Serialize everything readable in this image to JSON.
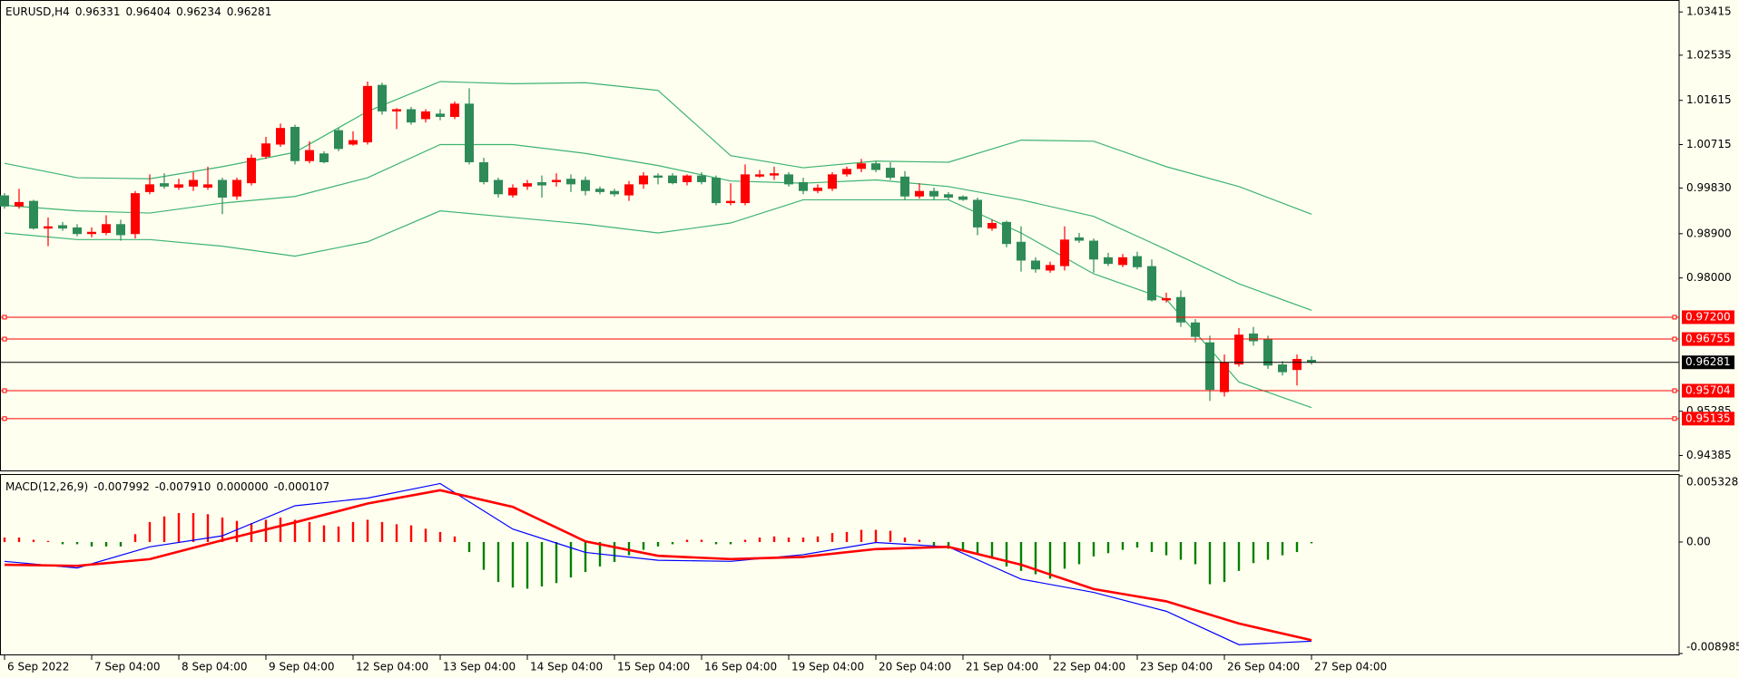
{
  "chart_data": [
    {
      "type": "candlestick",
      "symbol": "EURUSD,H4",
      "up_color": "#ff0000",
      "down_color": "#2e8b57",
      "ylim": [
        0.9408,
        1.0364
      ],
      "yticks": [
        1.03415,
        1.02535,
        1.01615,
        1.00715,
        {
          "value": 0.9983,
          "label": "0.99830"
        },
        {
          "value": 0.989,
          "label": "0.98900"
        },
        {
          "value": 0.98,
          "label": "0.98000"
        },
        0.95285,
        0.94385
      ],
      "grid": false,
      "candles": [
        [
          0.9968,
          0.99725,
          0.9941,
          0.99455
        ],
        [
          0.99455,
          0.99815,
          0.9941,
          0.99545
        ],
        [
          0.99568,
          0.9959,
          0.98983,
          0.99005
        ],
        [
          0.99005,
          0.9923,
          0.98645,
          0.9905
        ],
        [
          0.99073,
          0.9914,
          0.9896,
          0.99005
        ],
        [
          0.99028,
          0.99095,
          0.98848,
          0.98893
        ],
        [
          0.98893,
          0.99028,
          0.98825,
          0.98938
        ],
        [
          0.98915,
          0.99275,
          0.9887,
          0.99095
        ],
        [
          0.99095,
          0.99185,
          0.98758,
          0.9887
        ],
        [
          0.98893,
          0.9977,
          0.98803,
          0.99725
        ],
        [
          0.99748,
          1.00108,
          0.99703,
          0.99905
        ],
        [
          0.99928,
          1.0013,
          0.99815,
          0.9986
        ],
        [
          0.99838,
          1.00018,
          0.99793,
          0.99905
        ],
        [
          0.9986,
          1.00153,
          0.9977,
          0.99995
        ],
        [
          0.99838,
          1.00265,
          0.99793,
          0.99905
        ],
        [
          0.99995,
          1.0004,
          0.99298,
          0.99635
        ],
        [
          0.99658,
          1.0004,
          0.9959,
          0.99995
        ],
        [
          0.99928,
          1.00513,
          0.99883,
          1.00445
        ],
        [
          1.00468,
          1.00873,
          1.00423,
          1.00738
        ],
        [
          1.00715,
          1.01143,
          1.0067,
          1.01053
        ],
        [
          1.01075,
          1.0112,
          1.0031,
          1.00378
        ],
        [
          1.00378,
          1.00783,
          1.00333,
          1.00603
        ],
        [
          1.00535,
          1.0058,
          1.00333,
          1.00355
        ],
        [
          1.01008,
          1.01053,
          1.0058,
          1.00625
        ],
        [
          1.00715,
          1.00985,
          1.00693,
          1.00805
        ],
        [
          1.0076,
          1.01998,
          1.00715,
          1.01908
        ],
        [
          1.0193,
          1.01975,
          1.01323,
          1.0139
        ],
        [
          1.0139,
          1.01458,
          1.0103,
          1.01435
        ],
        [
          1.01435,
          1.0148,
          1.0112,
          1.01165
        ],
        [
          1.01233,
          1.01435,
          1.01165,
          1.0139
        ],
        [
          1.01345,
          1.01435,
          1.0121,
          1.01278
        ],
        [
          1.01278,
          1.01593,
          1.01233,
          1.01548
        ],
        [
          1.01548,
          1.01863,
          1.0031,
          1.00355
        ],
        [
          1.00355,
          1.00445,
          0.99905,
          0.9995
        ],
        [
          0.99995,
          1.0004,
          0.99635,
          0.99703
        ],
        [
          0.9968,
          0.99905,
          0.99635,
          0.99838
        ],
        [
          0.9986,
          0.99995,
          0.99793,
          0.99928
        ],
        [
          0.9995,
          1.00085,
          0.99635,
          0.99883
        ],
        [
          0.9995,
          1.0013,
          0.9986,
          0.99995
        ],
        [
          1.00018,
          1.00108,
          0.99748,
          0.99905
        ],
        [
          0.99995,
          1.00063,
          0.9968,
          0.9977
        ],
        [
          0.99815,
          0.9986,
          0.99703,
          0.99748
        ],
        [
          0.9977,
          0.99815,
          0.99658,
          0.99703
        ],
        [
          0.9968,
          0.99973,
          0.99568,
          0.99905
        ],
        [
          0.99905,
          1.00153,
          0.99815,
          1.00085
        ],
        [
          1.00085,
          1.0013,
          0.99905,
          1.0004
        ],
        [
          1.00085,
          1.0013,
          0.99905,
          0.99928
        ],
        [
          0.9995,
          1.00108,
          0.99883,
          1.00085
        ],
        [
          1.00085,
          1.00153,
          0.99905,
          0.9995
        ],
        [
          1.0004,
          1.00085,
          0.99478,
          0.99523
        ],
        [
          0.99523,
          0.99928,
          0.99478,
          0.99568
        ],
        [
          0.99523,
          1.0031,
          0.99478,
          1.00108
        ],
        [
          1.00063,
          1.00198,
          1.0004,
          1.00108
        ],
        [
          1.00085,
          1.00265,
          0.99995,
          1.0013
        ],
        [
          1.00108,
          1.00153,
          0.9986,
          0.99905
        ],
        [
          0.9995,
          1.0004,
          0.99703,
          0.9977
        ],
        [
          0.9977,
          0.99905,
          0.99725,
          0.99838
        ],
        [
          0.99815,
          1.00153,
          0.9977,
          1.00108
        ],
        [
          1.00108,
          1.00265,
          1.00063,
          1.0022
        ],
        [
          1.0022,
          1.00423,
          1.00153,
          1.00333
        ],
        [
          1.00333,
          1.00378,
          1.00153,
          1.00198
        ],
        [
          1.00243,
          1.00355,
          0.99995,
          1.0004
        ],
        [
          1.00063,
          1.00175,
          0.9959,
          0.99658
        ],
        [
          0.99658,
          0.99928,
          0.99613,
          0.9977
        ],
        [
          0.9977,
          0.99838,
          0.9959,
          0.99658
        ],
        [
          0.99703,
          0.99748,
          0.9959,
          0.99635
        ],
        [
          0.99658,
          0.9968,
          0.99568,
          0.9959
        ],
        [
          0.9959,
          0.99635,
          0.9887,
          0.99028
        ],
        [
          0.99005,
          0.99185,
          0.9896,
          0.99118
        ],
        [
          0.9914,
          0.99163,
          0.98623,
          0.9869
        ],
        [
          0.98735,
          0.9905,
          0.98128,
          0.98353
        ],
        [
          0.98353,
          0.9842,
          0.98105,
          0.98173
        ],
        [
          0.9815,
          0.9833,
          0.98105,
          0.98263
        ],
        [
          0.9824,
          0.9905,
          0.9815,
          0.9878
        ],
        [
          0.98825,
          0.98915,
          0.98713,
          0.98758
        ],
        [
          0.98758,
          0.98803,
          0.98105,
          0.98375
        ],
        [
          0.9842,
          0.9851,
          0.9824,
          0.98285
        ],
        [
          0.98263,
          0.98488,
          0.98218,
          0.9842
        ],
        [
          0.98443,
          0.98533,
          0.98173,
          0.98218
        ],
        [
          0.9824,
          0.98375,
          0.9752,
          0.97543
        ],
        [
          0.97543,
          0.977,
          0.97498,
          0.97588
        ],
        [
          0.9761,
          0.97745,
          0.97003,
          0.97093
        ],
        [
          0.97093,
          0.9716,
          0.96688,
          0.968
        ],
        [
          0.96688,
          0.96823,
          0.95495,
          0.9572
        ],
        [
          0.95675,
          0.9644,
          0.95585,
          0.96283
        ],
        [
          0.96238,
          0.9698,
          0.96193,
          0.96845
        ],
        [
          0.96868,
          0.97003,
          0.9662,
          0.9671
        ],
        [
          0.96755,
          0.96823,
          0.96148,
          0.96215
        ],
        [
          0.96238,
          0.96305,
          0.96013,
          0.9608
        ],
        [
          0.96125,
          0.9644,
          0.9581,
          0.9635
        ],
        [
          0.96331,
          0.96404,
          0.96234,
          0.96281
        ]
      ],
      "bands": {
        "color": "#3cb371",
        "x": [
          0,
          5,
          10,
          15,
          20,
          25,
          30,
          35,
          40,
          45,
          50,
          55,
          60,
          65,
          70,
          75,
          80,
          85,
          90
        ],
        "upper": [
          1.00333,
          1.0004,
          1.00018,
          1.00265,
          1.00558,
          1.0139,
          1.01998,
          1.01953,
          1.01975,
          1.01818,
          1.0049,
          1.00243,
          1.00378,
          1.00355,
          1.00805,
          1.00783,
          1.00265,
          0.9986,
          0.99298
        ],
        "middle": [
          0.99478,
          0.99365,
          0.9932,
          0.99523,
          0.99658,
          1.0004,
          1.00715,
          1.00715,
          1.00535,
          1.00288,
          0.99973,
          0.99928,
          0.99995,
          0.9986,
          0.9959,
          0.99253,
          0.98578,
          0.9788,
          0.9734
        ],
        "lower": [
          0.98915,
          0.9878,
          0.9878,
          0.98645,
          0.98443,
          0.98735,
          0.99365,
          0.9923,
          0.99095,
          0.98915,
          0.99118,
          0.9959,
          0.9959,
          0.9959,
          0.98915,
          0.98083,
          0.97565,
          0.9588,
          0.9536
        ]
      },
      "levels": {
        "color": "#ff0000",
        "values": [
          0.972,
          0.96755,
          0.95704,
          0.95135
        ],
        "value_labels": [
          "0.97200",
          "0.96755",
          "0.95704",
          "0.95135"
        ]
      },
      "price_line_color": "#000000"
    },
    {
      "type": "macd",
      "title": "MACD(12,26,9)",
      "readout": {
        "values": [
          -0.007992,
          -0.00791,
          0,
          -0.000107
        ],
        "value_labels": [
          "-0.007992",
          "-0.007910",
          "0.000000",
          "-0.000107"
        ]
      },
      "ylim": [
        -0.008985,
        0.005328
      ],
      "yticks": [
        0.005328,
        {
          "value": 0,
          "label": "0.00"
        },
        -0.008985
      ],
      "up_color": "#ff0000",
      "down_color": "#008000",
      "histogram": [
        0.00036,
        0.00036,
        0.00018,
        9e-05,
        -0.00018,
        -0.00018,
        -0.00036,
        -0.00036,
        -0.00036,
        0.00063,
        0.00161,
        0.00206,
        0.00233,
        0.00233,
        0.00224,
        0.00197,
        0.0017,
        0.00152,
        0.00179,
        0.00197,
        0.00179,
        0.00161,
        0.00134,
        0.00125,
        0.00161,
        0.00179,
        0.00161,
        0.00143,
        0.00134,
        0.00107,
        0.00081,
        0.00045,
        -0.00081,
        -0.00224,
        -0.00322,
        -0.00367,
        -0.00376,
        -0.00358,
        -0.00331,
        -0.00286,
        -0.00242,
        -0.00197,
        -0.00161,
        -0.00107,
        -0.00063,
        -0.00036,
        -0.00018,
        0.00018,
        0.00018,
        -0.00018,
        -0.00018,
        0.00018,
        0.00036,
        0.00045,
        0.00036,
        0.00036,
        0.00045,
        0.00072,
        0.00081,
        0.00098,
        0.00098,
        0.0009,
        0.00036,
        0.00018,
        -0.00045,
        -0.00054,
        -0.00063,
        -0.0009,
        -0.00134,
        -0.00197,
        -0.00233,
        -0.0026,
        -0.00295,
        -0.00215,
        -0.00179,
        -0.00116,
        -0.0009,
        -0.00063,
        -0.00045,
        -0.00081,
        -0.00107,
        -0.00143,
        -0.00179,
        -0.0034,
        -0.00322,
        -0.00233,
        -0.0017,
        -0.00143,
        -0.00107,
        -0.00081,
        -0.000107
      ],
      "x": [
        0,
        5,
        10,
        15,
        20,
        25,
        30,
        35,
        40,
        45,
        50,
        55,
        60,
        65,
        70,
        75,
        80,
        85,
        90
      ],
      "series": [
        {
          "color": "#0000ff",
          "values": [
            -0.00156,
            -0.00209,
            -0.00039,
            0.0005,
            0.00292,
            0.00354,
            0.00471,
            0.00104,
            -0.00084,
            -0.00147,
            -0.00156,
            -0.00102,
            -4e-05,
            -0.00039,
            -0.00299,
            -0.00406,
            -0.00558,
            -0.00827,
            -0.007992
          ]
        },
        {
          "color": "#ff0000",
          "values": [
            -0.00183,
            -0.00192,
            -0.00138,
            0.00014,
            0.00158,
            0.0031,
            0.00417,
            0.00283,
            5e-05,
            -0.00111,
            -0.00138,
            -0.0012,
            -0.00057,
            -0.00039,
            -0.00183,
            -0.00379,
            -0.00478,
            -0.00657,
            -0.00791
          ]
        }
      ],
      "xticks": [
        {
          "value": 0,
          "label": "6 Sep 2022"
        },
        {
          "value": 6,
          "label": "7 Sep 04:00"
        },
        {
          "value": 12,
          "label": "8 Sep 04:00"
        },
        {
          "value": 18,
          "label": "9 Sep 04:00"
        },
        {
          "value": 24,
          "label": "12 Sep 04:00"
        },
        {
          "value": 30,
          "label": "13 Sep 04:00"
        },
        {
          "value": 36,
          "label": "14 Sep 04:00"
        },
        {
          "value": 42,
          "label": "15 Sep 04:00"
        },
        {
          "value": 48,
          "label": "16 Sep 04:00"
        },
        {
          "value": 54,
          "label": "19 Sep 04:00"
        },
        {
          "value": 60,
          "label": "20 Sep 04:00"
        },
        {
          "value": 66,
          "label": "21 Sep 04:00"
        },
        {
          "value": 72,
          "label": "22 Sep 04:00"
        },
        {
          "value": 78,
          "label": "23 Sep 04:00"
        },
        {
          "value": 84,
          "label": "26 Sep 04:00"
        },
        {
          "value": 90,
          "label": "27 Sep 04:00"
        }
      ]
    }
  ]
}
